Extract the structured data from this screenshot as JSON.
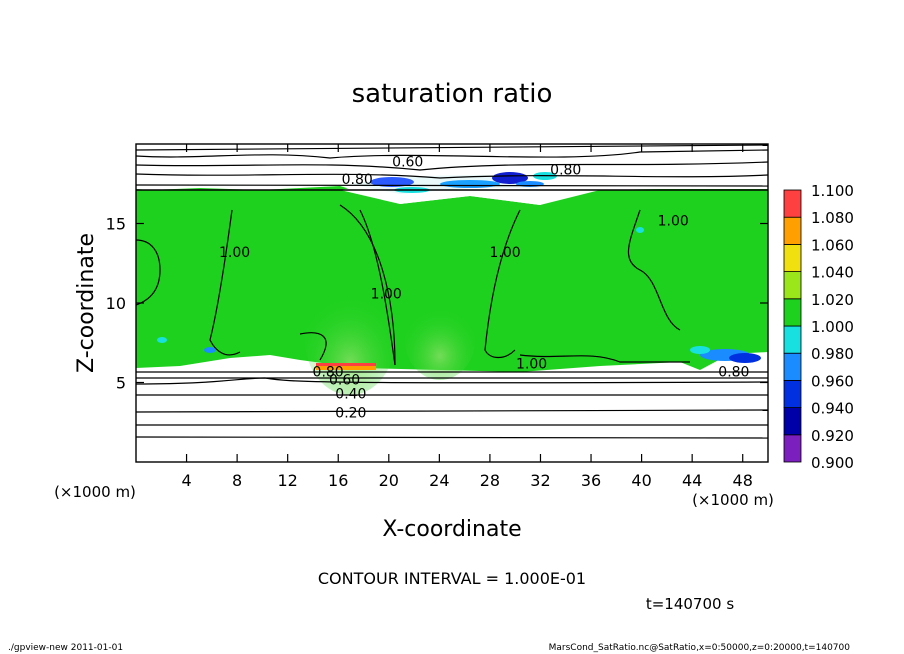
{
  "chart_data": {
    "type": "heatmap",
    "title": "saturation ratio",
    "xlabel": "X-coordinate",
    "ylabel": "Z-coordinate",
    "x_unit_note": "(×1000 m)",
    "y_unit_note": "(×1000 m)",
    "xlim": [
      0,
      50
    ],
    "ylim": [
      0,
      20
    ],
    "x_ticks": [
      4,
      8,
      12,
      16,
      20,
      24,
      28,
      32,
      36,
      40,
      44,
      48
    ],
    "y_ticks": [
      5,
      10,
      15
    ],
    "colorbar": {
      "levels": [
        0.9,
        0.92,
        0.94,
        0.96,
        0.98,
        1.0,
        1.02,
        1.04,
        1.06,
        1.08,
        1.1
      ],
      "labels": [
        "0.900",
        "0.920",
        "0.940",
        "0.960",
        "0.980",
        "1.000",
        "1.020",
        "1.040",
        "1.060",
        "1.080",
        "1.100"
      ],
      "colors": [
        "#7b1fbf",
        "#0000a8",
        "#0030e0",
        "#1a8cff",
        "#19e0e0",
        "#1fd11f",
        "#9be61a",
        "#f0e010",
        "#ffa000",
        "#ff4040",
        "#ff9090"
      ]
    },
    "contour_labels": [
      {
        "text": "0.60",
        "x": 21.5,
        "z": 18.9
      },
      {
        "text": "0.80",
        "x": 34.0,
        "z": 18.4
      },
      {
        "text": "0.80",
        "x": 17.5,
        "z": 17.8
      },
      {
        "text": "1.00",
        "x": 7.8,
        "z": 13.2
      },
      {
        "text": "1.00",
        "x": 19.8,
        "z": 10.6
      },
      {
        "text": "1.00",
        "x": 29.2,
        "z": 13.2
      },
      {
        "text": "1.00",
        "x": 42.5,
        "z": 15.2
      },
      {
        "text": "1.00",
        "x": 31.3,
        "z": 6.2
      },
      {
        "text": "0.80",
        "x": 47.3,
        "z": 5.7
      },
      {
        "text": "0.80",
        "x": 15.2,
        "z": 5.7
      },
      {
        "text": "0.60",
        "x": 16.5,
        "z": 5.2
      },
      {
        "text": "0.40",
        "x": 17.0,
        "z": 4.3
      },
      {
        "text": "0.20",
        "x": 17.0,
        "z": 3.1
      }
    ],
    "contour_interval_text": "CONTOUR INTERVAL = 1.000E-01",
    "time_text": "t=140700 s"
  },
  "footer": {
    "left": "./gpview-new   2011-01-01",
    "right": "MarsCond_SatRatio.nc@SatRatio,x=0:50000,z=0:20000,t=140700"
  }
}
